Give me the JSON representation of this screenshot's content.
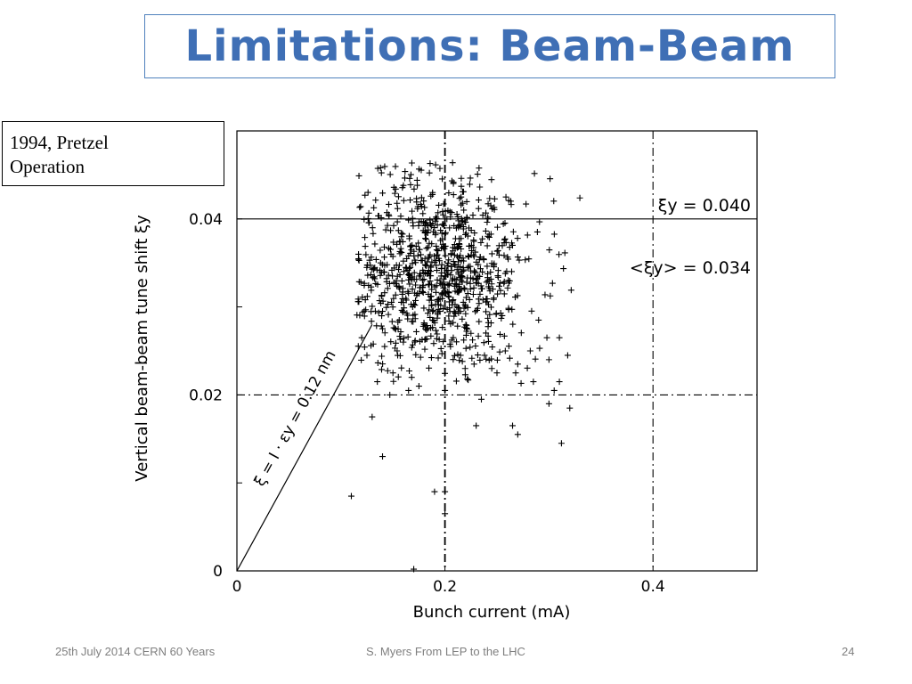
{
  "slide": {
    "title": "Limitations: Beam-Beam",
    "note_line1": "1994, Pretzel",
    "note_line2": "Operation",
    "footer_left": "25th July 2014 CERN 60 Years",
    "footer_center": "S. Myers From LEP to the LHC",
    "footer_right": "24",
    "title_color": "#3f6fb5",
    "border_color": "#4f81bd"
  },
  "chart_data": {
    "type": "scatter",
    "title": "",
    "xlabel": "Bunch current (mA)",
    "ylabel": "Vertical beam-beam tune shift ξy",
    "xlim": [
      0,
      0.5
    ],
    "ylim": [
      0,
      0.05
    ],
    "xticks": [
      0,
      0.2,
      0.4
    ],
    "xtick_labels": [
      "0",
      "0.2",
      "0.4"
    ],
    "yticks": [
      0,
      0.02,
      0.04
    ],
    "ytick_labels": [
      "0",
      "0.02",
      "0.04"
    ],
    "grid": false,
    "marker": "+",
    "reference_lines": [
      {
        "orientation": "horizontal",
        "value": 0.04,
        "style": "solid",
        "label": "ξy = 0.040"
      },
      {
        "orientation": "horizontal",
        "value": 0.034,
        "style": "none",
        "label": "<ξy> = 0.034"
      },
      {
        "orientation": "horizontal",
        "value": 0.02,
        "style": "dashdot",
        "label": ""
      },
      {
        "orientation": "vertical",
        "value": 0.2,
        "style": "dashdot",
        "label": ""
      },
      {
        "orientation": "vertical",
        "value": 0.4,
        "style": "dashdot",
        "label": ""
      }
    ],
    "slope_line": {
      "from": [
        0,
        0
      ],
      "to": [
        0.13,
        0.028
      ],
      "label": "ξ = I ⋅ εy = 0.12 nm"
    },
    "cluster": {
      "center": [
        0.195,
        0.034
      ],
      "spread": [
        0.045,
        0.0055
      ],
      "count": 900
    },
    "series": [
      {
        "x": [
          0.11,
          0.13,
          0.14,
          0.147,
          0.154,
          0.17,
          0.19,
          0.2,
          0.23,
          0.25,
          0.265,
          0.27,
          0.3,
          0.312,
          0.155,
          0.18,
          0.215,
          0.245,
          0.282,
          0.305,
          0.125,
          0.135,
          0.16,
          0.195,
          0.225,
          0.255,
          0.29,
          0.31,
          0.12,
          0.142,
          0.168,
          0.188,
          0.208,
          0.238,
          0.268,
          0.298,
          0.318,
          0.15,
          0.175,
          0.2,
          0.228,
          0.258,
          0.285,
          0.31,
          0.165,
          0.2,
          0.235,
          0.27,
          0.3,
          0.14,
          0.16,
          0.32
        ],
        "y": [
          0.0085,
          0.0175,
          0.013,
          0.02,
          0.025,
          0.0002,
          0.009,
          0.0065,
          0.0165,
          0.0225,
          0.0165,
          0.0155,
          0.019,
          0.0145,
          0.0275,
          0.028,
          0.0245,
          0.023,
          0.025,
          0.0205,
          0.0245,
          0.0215,
          0.026,
          0.0295,
          0.027,
          0.029,
          0.0285,
          0.0265,
          0.0265,
          0.0255,
          0.022,
          0.0285,
          0.0265,
          0.0245,
          0.0225,
          0.0265,
          0.0245,
          0.0225,
          0.021,
          0.0205,
          0.0235,
          0.025,
          0.0215,
          0.0215,
          0.0205,
          0.009,
          0.0195,
          0.0235,
          0.024,
          0.0295,
          0.0305,
          0.0185
        ]
      }
    ]
  }
}
